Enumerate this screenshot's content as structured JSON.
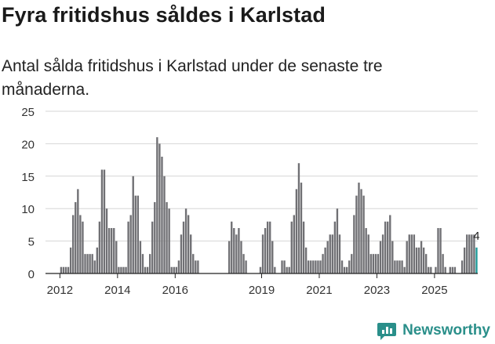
{
  "title": "Fyra fritidshus såldes i Karlstad",
  "subtitle": "Antal sålda fritidshus i Karlstad under de senaste tre månaderna.",
  "brand": "Newsworthy",
  "colors": {
    "bar": "#707074",
    "highlight": "#1e9a98",
    "grid": "#d6d6d6",
    "axis": "#222222"
  },
  "chart_data": {
    "type": "bar",
    "x_start": "2011-07",
    "x_end": "2025-12",
    "ylim": [
      0,
      25
    ],
    "yticks": [
      0,
      5,
      10,
      15,
      20,
      25
    ],
    "xticks": [
      "2012",
      "2014",
      "2016",
      "2019",
      "2021",
      "2023",
      "2025"
    ],
    "grid": true,
    "last_value_label": "4",
    "values": [
      0,
      0,
      0,
      0,
      0,
      0,
      1,
      1,
      1,
      1,
      4,
      9,
      11,
      13,
      9,
      8,
      3,
      3,
      3,
      3,
      2,
      4,
      8,
      16,
      16,
      10,
      7,
      7,
      7,
      5,
      1,
      1,
      1,
      1,
      8,
      9,
      15,
      12,
      12,
      5,
      3,
      1,
      1,
      3,
      8,
      11,
      21,
      20,
      18,
      15,
      11,
      10,
      1,
      1,
      1,
      2,
      6,
      8,
      10,
      9,
      6,
      3,
      2,
      2,
      0,
      0,
      0,
      0,
      0,
      0,
      0,
      0,
      0,
      0,
      0,
      0,
      5,
      8,
      7,
      6,
      7,
      5,
      3,
      2,
      0,
      0,
      0,
      0,
      0,
      1,
      6,
      7,
      8,
      8,
      5,
      1,
      0,
      0,
      2,
      2,
      1,
      1,
      8,
      9,
      13,
      17,
      14,
      8,
      4,
      2,
      2,
      2,
      2,
      2,
      2,
      3,
      4,
      5,
      6,
      6,
      8,
      10,
      6,
      2,
      1,
      1,
      2,
      3,
      9,
      12,
      14,
      13,
      12,
      7,
      6,
      3,
      3,
      3,
      3,
      5,
      6,
      8,
      8,
      9,
      5,
      2,
      2,
      2,
      2,
      1,
      5,
      6,
      6,
      6,
      4,
      4,
      5,
      4,
      3,
      1,
      1,
      0,
      1,
      7,
      7,
      3,
      1,
      0,
      1,
      1,
      1,
      0,
      0,
      2,
      4,
      6,
      6,
      6,
      6,
      4
    ]
  }
}
